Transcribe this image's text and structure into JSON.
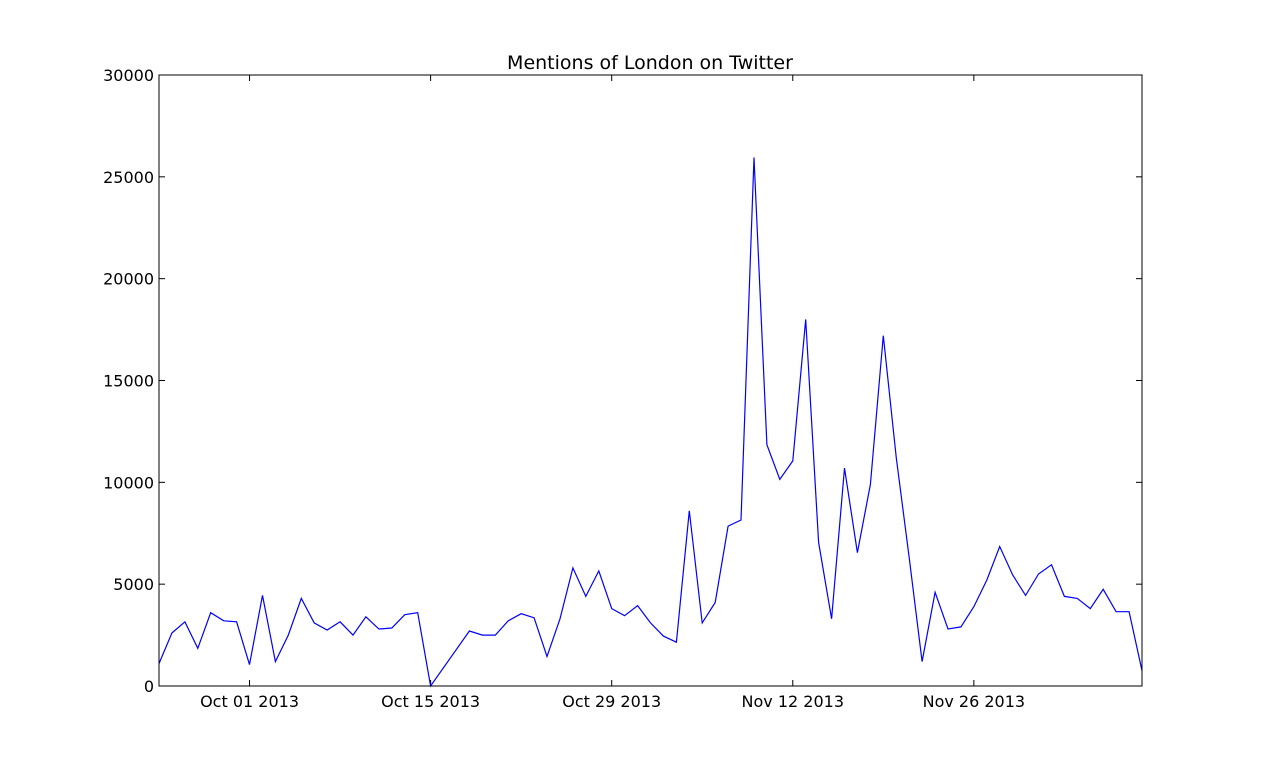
{
  "chart_data": {
    "type": "line",
    "title": "Mentions of London on Twitter",
    "xlabel": "",
    "ylabel": "",
    "xlim": [
      "2013-09-24",
      "2013-12-09"
    ],
    "ylim": [
      0,
      30000
    ],
    "y_ticks": [
      0,
      5000,
      10000,
      15000,
      20000,
      25000,
      30000
    ],
    "x_ticks": [
      {
        "date": "2013-10-01",
        "label": "Oct 01 2013"
      },
      {
        "date": "2013-10-15",
        "label": "Oct 15 2013"
      },
      {
        "date": "2013-10-29",
        "label": "Oct 29 2013"
      },
      {
        "date": "2013-11-12",
        "label": "Nov 12 2013"
      },
      {
        "date": "2013-11-26",
        "label": "Nov 26 2013"
      }
    ],
    "grid": false,
    "color": "#0000ff",
    "series": [
      {
        "x": [
          "2013-09-24",
          "2013-09-25",
          "2013-09-26",
          "2013-09-27",
          "2013-09-28",
          "2013-09-29",
          "2013-09-30",
          "2013-10-01",
          "2013-10-02",
          "2013-10-03",
          "2013-10-04",
          "2013-10-05",
          "2013-10-06",
          "2013-10-07",
          "2013-10-08",
          "2013-10-09",
          "2013-10-10",
          "2013-10-11",
          "2013-10-12",
          "2013-10-13",
          "2013-10-14",
          "2013-10-15",
          "2013-10-18",
          "2013-10-19",
          "2013-10-20",
          "2013-10-21",
          "2013-10-22",
          "2013-10-23",
          "2013-10-24",
          "2013-10-25",
          "2013-10-26",
          "2013-10-27",
          "2013-10-28",
          "2013-10-29",
          "2013-10-30",
          "2013-10-31",
          "2013-11-01",
          "2013-11-02",
          "2013-11-03",
          "2013-11-04",
          "2013-11-05",
          "2013-11-06",
          "2013-11-07",
          "2013-11-08",
          "2013-11-09",
          "2013-11-10",
          "2013-11-11",
          "2013-11-12",
          "2013-11-13",
          "2013-11-14",
          "2013-11-15",
          "2013-11-16",
          "2013-11-17",
          "2013-11-18",
          "2013-11-19",
          "2013-11-20",
          "2013-11-21",
          "2013-11-22",
          "2013-11-23",
          "2013-11-24",
          "2013-11-25",
          "2013-11-26",
          "2013-11-27",
          "2013-11-28",
          "2013-11-29",
          "2013-11-30",
          "2013-12-01",
          "2013-12-02",
          "2013-12-03",
          "2013-12-04",
          "2013-12-05",
          "2013-12-06",
          "2013-12-07",
          "2013-12-08",
          "2013-12-09"
        ],
        "values": [
          1100,
          2600,
          3150,
          1850,
          3600,
          3200,
          3150,
          1050,
          4450,
          1200,
          2500,
          4300,
          3100,
          2750,
          3150,
          2500,
          3400,
          2800,
          2850,
          3500,
          3600,
          0,
          2700,
          2500,
          2500,
          3200,
          3550,
          3350,
          1450,
          3300,
          5800,
          4400,
          5650,
          3800,
          3450,
          3950,
          3100,
          2450,
          2150,
          8600,
          3100,
          4100,
          7850,
          8150,
          25950,
          11850,
          10150,
          11050,
          18000,
          7050,
          3300,
          10700,
          6550,
          9900,
          17200,
          11200,
          6300,
          1200,
          4600,
          2800,
          2900,
          3900,
          5200,
          6850,
          5450,
          4450,
          5500,
          5950,
          4400,
          4300,
          3800,
          4750,
          3650,
          3650,
          750
        ]
      }
    ]
  }
}
